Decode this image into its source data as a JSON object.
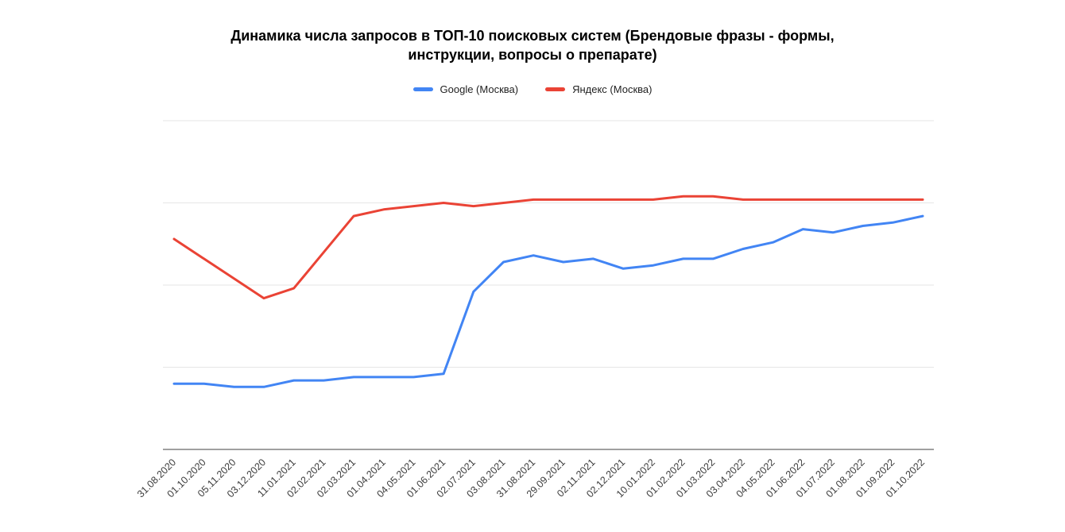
{
  "title": {
    "line1": "Динамика числа запросов в ТОП-10 поисковых систем (Брендовые фразы - формы,",
    "line2": "инструкции, вопросы о препарате)"
  },
  "legend": {
    "items": [
      {
        "label": "Google (Москва)",
        "color": "#4285f4"
      },
      {
        "label": "Яндекс (Москва)",
        "color": "#ea4335"
      }
    ],
    "position": "top"
  },
  "chart_data": {
    "type": "line",
    "title": "Динамика числа запросов в ТОП-10 поисковых систем (Брендовые фразы - формы, инструкции, вопросы о препарате)",
    "categories": [
      "31.08.2020",
      "01.10.2020",
      "05.11.2020",
      "03.12.2020",
      "11.01.2021",
      "02.02.2021",
      "02.03.2021",
      "01.04.2021",
      "04.05.2021",
      "01.06.2021",
      "02.07.2021",
      "03.08.2021",
      "31.08.2021",
      "29.09.2021",
      "02.11.2021",
      "02.12.2021",
      "10.01.2022",
      "01.02.2022",
      "01.03.2022",
      "03.04.2022",
      "04.05.2022",
      "01.06.2022",
      "01.07.2022",
      "01.08.2022",
      "01.09.2022",
      "01.10.2022"
    ],
    "series": [
      {
        "name": "Google (Москва)",
        "color": "#4285f4",
        "values": [
          20,
          20,
          19,
          19,
          21,
          21,
          22,
          22,
          22,
          23,
          48,
          57,
          59,
          57,
          58,
          55,
          56,
          58,
          58,
          61,
          63,
          67,
          66,
          68,
          69,
          71
        ]
      },
      {
        "name": "Яндекс (Москва)",
        "color": "#ea4335",
        "values": [
          64,
          58,
          52,
          46,
          49,
          60,
          71,
          73,
          74,
          75,
          74,
          75,
          76,
          76,
          76,
          76,
          76,
          77,
          77,
          76,
          76,
          76,
          76,
          76,
          76,
          76
        ]
      }
    ],
    "xlabel": "",
    "ylabel": "",
    "ylim": [
      0,
      100
    ],
    "y_tick_labels_visible": false,
    "values_note": "Y axis shows no tick labels in the image; series values estimated on a 0-100 scale from the 4 gridline intervals",
    "grid": true,
    "gridline_color": "#e6e6e6",
    "axis_line_color": "#424242",
    "x_tick_rotation": -45,
    "legend_position": "top",
    "line_width": 3
  }
}
